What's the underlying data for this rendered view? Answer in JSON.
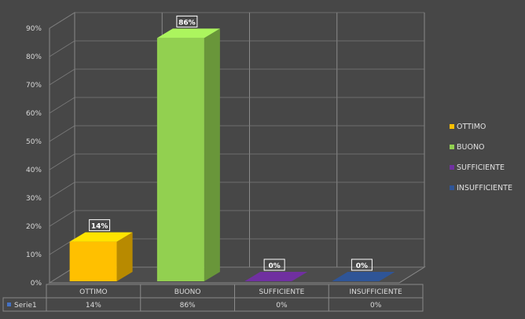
{
  "chart_data": {
    "type": "bar",
    "categories": [
      "OTTIMO",
      "BUONO",
      "SUFFICIENTE",
      "INSUFFICIENTE"
    ],
    "series": [
      {
        "name": "Serie1",
        "values": [
          14,
          86,
          0,
          0
        ]
      }
    ],
    "value_labels": [
      "14%",
      "86%",
      "0%",
      "0%"
    ],
    "ylim": [
      0,
      90
    ],
    "y_ticks": [
      "0%",
      "10%",
      "20%",
      "30%",
      "40%",
      "50%",
      "60%",
      "70%",
      "80%",
      "90%"
    ],
    "colors": [
      "#ffc000",
      "#92d050",
      "#7030a0",
      "#2f5597"
    ],
    "legend": {
      "position": "right",
      "items": [
        "OTTIMO",
        "BUONO",
        "SUFFICIENTE",
        "INSUFFICIENTE"
      ]
    },
    "data_table": {
      "series_label": "Serie1",
      "cells": [
        "14%",
        "86%",
        "0%",
        "0%"
      ]
    },
    "grid": true,
    "style": "3d-column"
  }
}
